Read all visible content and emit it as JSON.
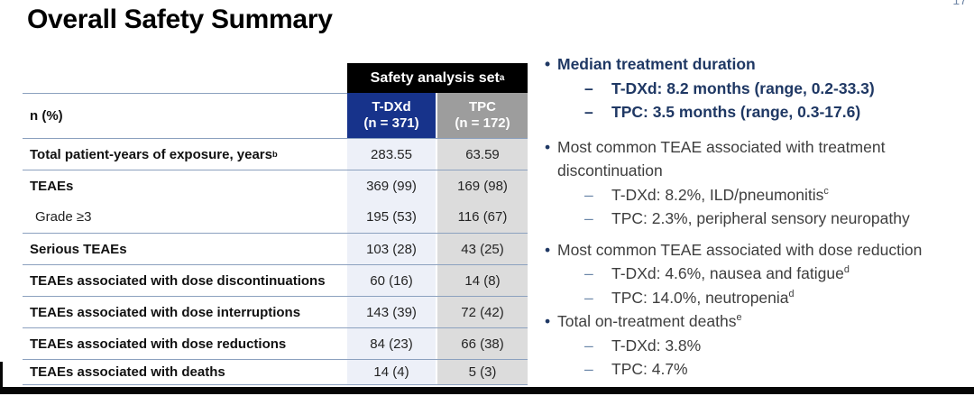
{
  "page": {
    "title": "Overall Safety Summary",
    "page_number": "17"
  },
  "markers": {
    "bullet": "•",
    "dash": "–"
  },
  "colors": {
    "navy_header": "#17338B",
    "gray_header": "#9D9D9D",
    "cell_blue": "#EDF0F8",
    "cell_gray": "#DCDCDC",
    "divider": "#8CA1BF",
    "navy_text": "#1F3864",
    "body_text": "#3E3E3E",
    "dash_blue": "#6B87A9",
    "black_bar": "#060606",
    "page_num": "#7288A8",
    "title_color": "#000000"
  },
  "table": {
    "span_header": {
      "text": "Safety analysis set",
      "sup": "a"
    },
    "corner_label": "n (%)",
    "columns": [
      {
        "name": "T-DXd",
        "n": "(n = 371)"
      },
      {
        "name": "TPC",
        "n": "(n = 172)"
      }
    ],
    "rows": [
      {
        "label": "Total patient-years of exposure, years",
        "sup": "b",
        "tdxd": "283.55",
        "tpc": "63.59"
      },
      {
        "label": "TEAEs",
        "sup": "",
        "tdxd": "369 (99)",
        "tpc": "169 (98)"
      },
      {
        "label": "Grade ≥3",
        "sup": "",
        "tdxd": "195 (53)",
        "tpc": "116 (67)"
      },
      {
        "label": "Serious TEAEs",
        "sup": "",
        "tdxd": "103 (28)",
        "tpc": "43 (25)"
      },
      {
        "label": "TEAEs associated with dose discontinuations",
        "sup": "",
        "tdxd": "60 (16)",
        "tpc": "14 (8)"
      },
      {
        "label": "TEAEs associated with dose interruptions",
        "sup": "",
        "tdxd": "143 (39)",
        "tpc": "72 (42)"
      },
      {
        "label": "TEAEs associated with dose reductions",
        "sup": "",
        "tdxd": "84 (23)",
        "tpc": "66 (38)"
      },
      {
        "label": "TEAEs associated with deaths",
        "sup": "",
        "tdxd": "14 (4)",
        "tpc": "5 (3)"
      }
    ]
  },
  "bullets": [
    {
      "head": "Median treatment duration",
      "head_sup": "",
      "subs": [
        {
          "text": "T-DXd: 8.2 months (range, 0.2-33.3)",
          "sup": ""
        },
        {
          "text": "TPC: 3.5 months (range, 0.3-17.6)",
          "sup": ""
        }
      ]
    },
    {
      "head": "Most common TEAE associated with treatment discontinuation",
      "head_sup": "",
      "subs": [
        {
          "text": "T-DXd: 8.2%, ILD/pneumonitis",
          "sup": "c"
        },
        {
          "text": "TPC: 2.3%, peripheral sensory neuropathy",
          "sup": ""
        }
      ]
    },
    {
      "head": "Most common TEAE associated with dose reduction",
      "head_sup": "",
      "subs": [
        {
          "text": "T-DXd: 4.6%, nausea and fatigue",
          "sup": "d"
        },
        {
          "text": "TPC: 14.0%, neutropenia",
          "sup": "d"
        }
      ]
    },
    {
      "head": "Total on-treatment deaths",
      "head_sup": "e",
      "subs": [
        {
          "text": "T-DXd: 3.8%",
          "sup": ""
        },
        {
          "text": "TPC: 4.7%",
          "sup": ""
        }
      ]
    }
  ]
}
